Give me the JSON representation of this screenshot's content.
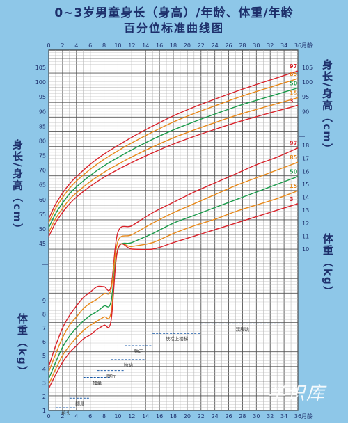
{
  "title_line1": "0~3岁男童身长（身高）/年龄、体重/年龄",
  "title_line2": "百分位标准曲线图",
  "x_unit": "月龄",
  "left_height_label": "身长/身高（cm）",
  "left_weight_label": "体重（kg）",
  "right_height_label": "身长/身高（cm）",
  "right_weight_label": "体重（kg）",
  "watermark": "学识库",
  "chart_data": {
    "type": "line",
    "x_ticks": [
      0,
      2,
      4,
      6,
      8,
      10,
      12,
      14,
      16,
      18,
      20,
      22,
      24,
      26,
      28,
      30,
      32,
      34,
      36
    ],
    "xlim": [
      0,
      36
    ],
    "height_panel": {
      "ylabel": "身长/身高（cm）",
      "ylim": [
        45,
        105
      ],
      "left_ticks": [
        45,
        50,
        55,
        60,
        65,
        70,
        75,
        80,
        85,
        90,
        95,
        100,
        105
      ],
      "right_ticks": [
        90,
        95,
        100,
        105
      ],
      "x": [
        0,
        1,
        2,
        3,
        4,
        6,
        8,
        10,
        12,
        15,
        18,
        21,
        24,
        27,
        30,
        33,
        36
      ],
      "series": [
        {
          "name": "97",
          "color": "#d9232b",
          "values": [
            53.5,
            58.4,
            62.2,
            65.3,
            67.8,
            72.0,
            75.5,
            78.4,
            81.2,
            85.0,
            88.5,
            91.5,
            94.2,
            96.8,
            99.2,
            101.5,
            103.8
          ]
        },
        {
          "name": "85",
          "color": "#e8891a",
          "values": [
            52.1,
            57.0,
            60.7,
            63.8,
            66.3,
            70.3,
            73.7,
            76.6,
            79.3,
            83.0,
            86.4,
            89.3,
            91.9,
            94.5,
            96.8,
            99.0,
            101.2
          ]
        },
        {
          "name": "50",
          "color": "#1a9b4a",
          "values": [
            50.4,
            55.2,
            58.8,
            61.9,
            64.3,
            68.2,
            71.5,
            74.3,
            76.9,
            80.5,
            83.7,
            86.5,
            89.1,
            91.6,
            93.8,
            95.9,
            98.0
          ]
        },
        {
          "name": "15",
          "color": "#e8891a",
          "values": [
            48.8,
            53.5,
            57.0,
            60.0,
            62.3,
            66.1,
            69.3,
            72.0,
            74.5,
            77.9,
            81.0,
            83.7,
            86.2,
            88.6,
            90.7,
            92.7,
            94.7
          ]
        },
        {
          "name": "3",
          "color": "#d9232b",
          "values": [
            47.4,
            52.1,
            55.6,
            58.5,
            60.8,
            64.5,
            67.6,
            70.2,
            72.6,
            75.9,
            78.9,
            81.5,
            83.9,
            86.2,
            88.2,
            90.2,
            92.1
          ]
        }
      ]
    },
    "weight_panel_upper": {
      "ylabel": "体重（kg）",
      "ylim": [
        10,
        18
      ],
      "right_ticks": [
        10,
        11,
        12,
        13,
        14,
        15,
        16,
        17,
        18
      ],
      "x": [
        10,
        12,
        15,
        18,
        21,
        24,
        27,
        30,
        33,
        36
      ],
      "series": [
        {
          "name": "97",
          "color": "#d9232b",
          "values": [
            11.3,
            11.8,
            12.8,
            13.6,
            14.4,
            15.1,
            15.8,
            16.5,
            17.1,
            17.8
          ]
        },
        {
          "name": "85",
          "color": "#e8891a",
          "values": [
            10.6,
            11.1,
            12.0,
            12.8,
            13.5,
            14.2,
            14.9,
            15.5,
            16.1,
            16.7
          ]
        },
        {
          "name": "50",
          "color": "#1a9b4a",
          "values": [
            10.0,
            10.5,
            11.2,
            12.0,
            12.6,
            13.2,
            13.8,
            14.4,
            15.0,
            15.6
          ]
        },
        {
          "name": "15",
          "color": "#e8891a",
          "values": [
            10.0,
            10.2,
            10.5,
            11.2,
            11.8,
            12.3,
            12.9,
            13.4,
            13.9,
            14.5
          ]
        },
        {
          "name": "3",
          "color": "#d9232b",
          "values": [
            10.0,
            10.0,
            10.0,
            10.5,
            11.0,
            11.5,
            12.0,
            12.5,
            13.0,
            13.5
          ]
        }
      ]
    },
    "weight_panel_lower": {
      "ylim": [
        1,
        10
      ],
      "left_ticks": [
        1,
        2,
        3,
        4,
        5,
        6,
        7,
        8,
        9
      ],
      "x": [
        0,
        1,
        2,
        3,
        4,
        5,
        6,
        7,
        8,
        9,
        10
      ],
      "series": [
        {
          "name": "97",
          "color": "#d9232b",
          "values": [
            4.2,
            5.7,
            7.0,
            7.9,
            8.6,
            9.2,
            9.6,
            10.0,
            10.0,
            10.0,
            10.0
          ]
        },
        {
          "name": "85",
          "color": "#e8891a",
          "values": [
            3.8,
            5.1,
            6.3,
            7.2,
            7.8,
            8.4,
            8.8,
            9.1,
            9.5,
            9.8,
            10.0
          ]
        },
        {
          "name": "50",
          "color": "#1a9b4a",
          "values": [
            3.3,
            4.5,
            5.6,
            6.4,
            7.0,
            7.5,
            7.9,
            8.2,
            8.6,
            8.9,
            9.2
          ]
        },
        {
          "name": "15",
          "color": "#e8891a",
          "values": [
            2.9,
            4.0,
            5.0,
            5.7,
            6.3,
            6.8,
            7.2,
            7.5,
            7.8,
            8.1,
            8.4
          ]
        },
        {
          "name": "3",
          "color": "#d9232b",
          "values": [
            2.6,
            3.6,
            4.5,
            5.2,
            5.7,
            6.2,
            6.5,
            6.9,
            7.2,
            7.5,
            7.7
          ]
        }
      ]
    },
    "milestones": [
      {
        "label": "抬头",
        "x_start": 1,
        "x_end": 4,
        "y": 1.2
      },
      {
        "label": "翻身",
        "x_start": 3,
        "x_end": 6,
        "y": 1.9
      },
      {
        "label": "独坐",
        "x_start": 5,
        "x_end": 9,
        "y": 3.4
      },
      {
        "label": "爬行",
        "x_start": 7,
        "x_end": 11,
        "y": 3.9
      },
      {
        "label": "独站",
        "x_start": 9,
        "x_end": 14,
        "y": 4.7
      },
      {
        "label": "独走",
        "x_start": 11,
        "x_end": 15,
        "y": 5.7
      },
      {
        "label": "扶栏上楼梯",
        "x_start": 15,
        "x_end": 22,
        "y": 6.6
      },
      {
        "label": "双脚跳",
        "x_start": 22,
        "x_end": 34,
        "y": 7.3
      }
    ]
  }
}
